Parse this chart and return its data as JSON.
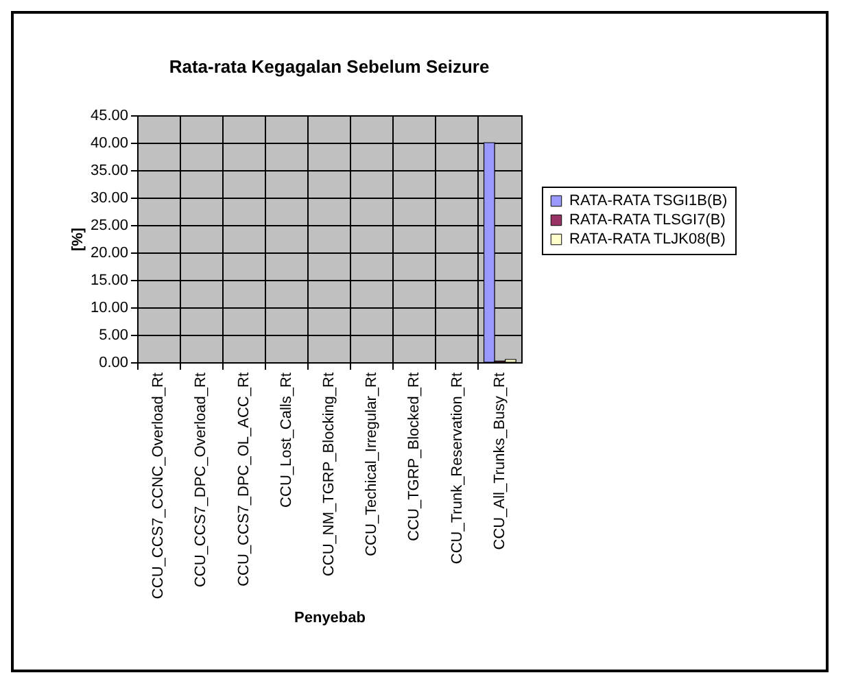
{
  "chart_data": {
    "type": "bar",
    "title": "Rata-rata Kegagalan Sebelum Seizure",
    "xlabel": "Penyebab",
    "ylabel": "[%]",
    "categories": [
      "CCU_CCS7_CCNC_Overload_Rt",
      "CCU_CCS7_DPC_Overload_Rt",
      "CCU_CCS7_DPC_OL_ACC_Rt",
      "CCU_Lost_Calls_Rt",
      "CCU_NM_TGRP_Blocking_Rt",
      "CCU_Techical_Irregular_Rt",
      "CCU_TGRP_Blocked_Rt",
      "CCU_Trunk_Reservation_Rt",
      "CCU_All_Trunks_Busy_Rt"
    ],
    "series": [
      {
        "name": "RATA-RATA TSGI1B(B)",
        "color": "#9999ff",
        "values": [
          0,
          0,
          0,
          0,
          0,
          0,
          0,
          0,
          40
        ]
      },
      {
        "name": "RATA-RATA TLSGI7(B)",
        "color": "#993366",
        "values": [
          0,
          0,
          0,
          0,
          0,
          0,
          0,
          0,
          0.2
        ]
      },
      {
        "name": "RATA-RATA TLJK08(B)",
        "color": "#ffffcc",
        "values": [
          0,
          0,
          0,
          0,
          0,
          0,
          0,
          0,
          0.5
        ]
      }
    ],
    "ylim": [
      0,
      45
    ],
    "yticks": [
      {
        "value": 0,
        "label": "0.00"
      },
      {
        "value": 5,
        "label": "5.00"
      },
      {
        "value": 10,
        "label": "10.00"
      },
      {
        "value": 15,
        "label": "15.00"
      },
      {
        "value": 20,
        "label": "20.00"
      },
      {
        "value": 25,
        "label": "25.00"
      },
      {
        "value": 30,
        "label": "30.00"
      },
      {
        "value": 35,
        "label": "35.00"
      },
      {
        "value": 40,
        "label": "40.00"
      },
      {
        "value": 45,
        "label": "45.00"
      }
    ],
    "grid": true,
    "legend": "right"
  }
}
